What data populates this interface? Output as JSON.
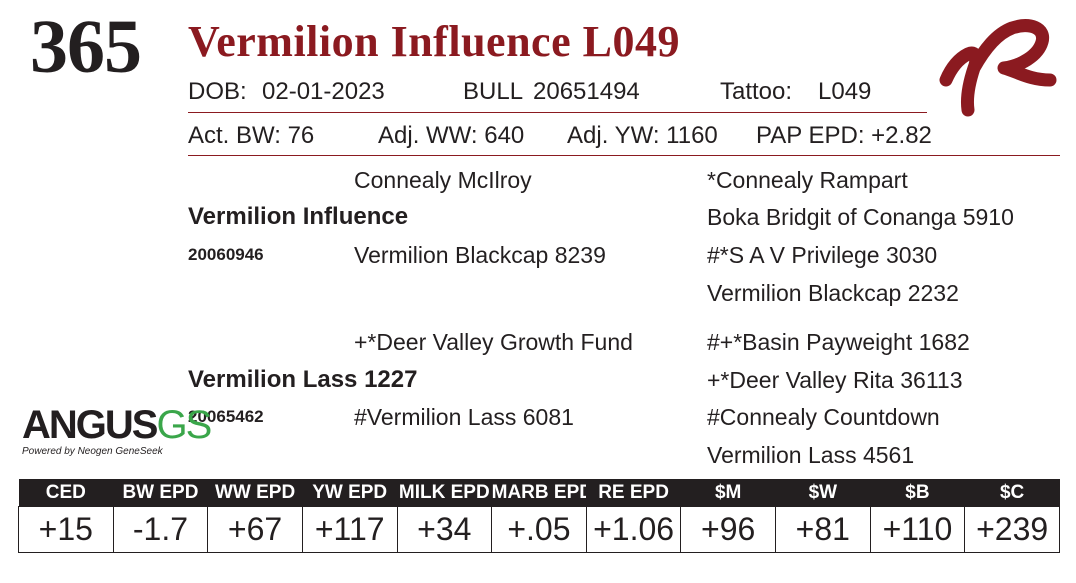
{
  "header": {
    "lot_number": "365",
    "animal_name": "Vermilion Influence L049",
    "dob_label": "DOB:",
    "dob_value": "02-01-2023",
    "sex": "BULL",
    "registration": "20651494",
    "tattoo_label": "Tattoo:",
    "tattoo_value": "L049"
  },
  "performance": {
    "act_bw": "Act. BW: 76",
    "adj_ww": "Adj. WW: 640",
    "adj_yw": "Adj. YW: 1160",
    "pap_epd": "PAP EPD: +2.82"
  },
  "pedigree": {
    "sire": {
      "name": "Vermilion Influence",
      "registration": "20060946",
      "sire": "Connealy McIlroy",
      "dam": "Vermilion Blackcap 8239",
      "sire_sire": "*Connealy Rampart",
      "sire_dam": "Boka Bridgit of Conanga 5910",
      "dam_sire": "#*S A V Privilege 3030",
      "dam_dam": "Vermilion Blackcap 2232"
    },
    "dam": {
      "name": "Vermilion Lass 1227",
      "registration": "20065462",
      "sire": "+*Deer Valley Growth Fund",
      "dam": "#Vermilion Lass 6081",
      "sire_sire": "#+*Basin Payweight 1682",
      "sire_dam": "+*Deer Valley Rita 36113",
      "dam_sire": "#Connealy Countdown",
      "dam_dam": "Vermilion Lass 4561"
    }
  },
  "logos": {
    "angus_word": "ANGUS",
    "angus_gs": "GS",
    "angus_tagline": "Powered by Neogen GeneSeek"
  },
  "epd_table": {
    "headers": [
      "CED",
      "BW EPD",
      "WW EPD",
      "YW EPD",
      "MILK EPD",
      "MARB EPD",
      "RE EPD",
      "$M",
      "$W",
      "$B",
      "$C"
    ],
    "values": [
      "+15",
      "-1.7",
      "+67",
      "+117",
      "+34",
      "+.05",
      "+1.06",
      "+96",
      "+81",
      "+110",
      "+239"
    ]
  },
  "colors": {
    "brand_red": "#8b1a20",
    "ink": "#231f20",
    "genomics_green": "#3aa64a"
  }
}
